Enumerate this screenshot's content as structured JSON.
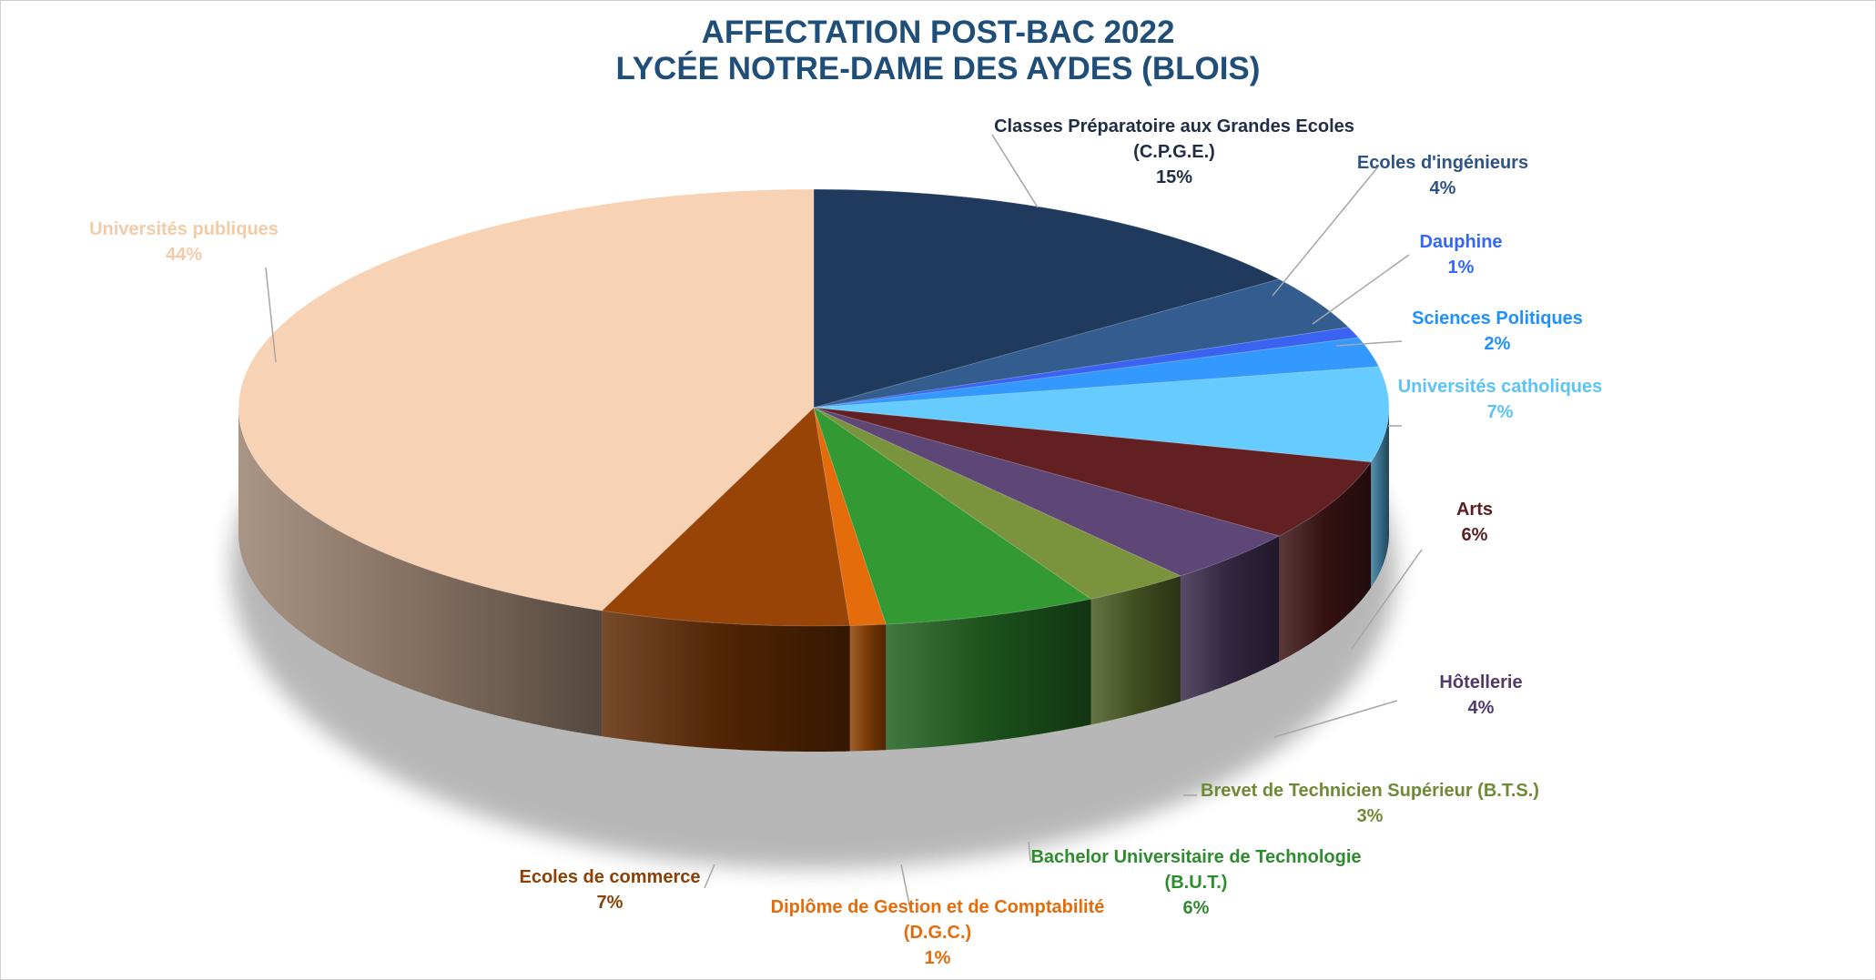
{
  "chart_data": {
    "type": "pie",
    "title_lines": [
      "AFFECTATION POST-BAC 2022",
      "LYCÉE NOTRE-DAME DES AYDES (BLOIS)"
    ],
    "slices": [
      {
        "label_lines": [
          "Classes Préparatoire aux Grandes Ecoles",
          "(C.P.G.E.)"
        ],
        "value": 15,
        "value_label": "15%",
        "color": "#203a5e",
        "label_color": "#1f2d45"
      },
      {
        "label_lines": [
          "Ecoles d'ingénieurs"
        ],
        "value": 4,
        "value_label": "4%",
        "color": "#335c8f",
        "label_color": "#2e5386"
      },
      {
        "label_lines": [
          "Dauphine"
        ],
        "value": 0.8,
        "value_label": "1%",
        "color": "#3a63f2",
        "label_color": "#3366ff"
      },
      {
        "label_lines": [
          "Sciences Politiques"
        ],
        "value": 2.2,
        "value_label": "2%",
        "color": "#3399ff",
        "label_color": "#1e90ff"
      },
      {
        "label_lines": [
          "Universités catholiques"
        ],
        "value": 7,
        "value_label": "7%",
        "color": "#66ccff",
        "label_color": "#5bc4f5"
      },
      {
        "label_lines": [
          "Arts"
        ],
        "value": 6,
        "value_label": "6%",
        "color": "#632023",
        "label_color": "#5a1f22"
      },
      {
        "label_lines": [
          "Hôtellerie"
        ],
        "value": 4,
        "value_label": "4%",
        "color": "#5e4677",
        "label_color": "#4f3a6b"
      },
      {
        "label_lines": [
          "Brevet de Technicien Supérieur (B.T.S.)"
        ],
        "value": 3,
        "value_label": "3%",
        "color": "#7a933c",
        "label_color": "#6f8a35"
      },
      {
        "label_lines": [
          "Bachelor Universitaire de Technologie",
          "(B.U.T.)"
        ],
        "value": 6,
        "value_label": "6%",
        "color": "#339933",
        "label_color": "#2e8b2e"
      },
      {
        "label_lines": [
          "Diplôme de Gestion et de Comptabilité",
          "(D.G.C.)"
        ],
        "value": 1,
        "value_label": "1%",
        "color": "#e46c0a",
        "label_color": "#e46c0a"
      },
      {
        "label_lines": [
          "Ecoles de commerce"
        ],
        "value": 7,
        "value_label": "7%",
        "color": "#974406",
        "label_color": "#8b4006"
      },
      {
        "label_lines": [
          "Universités publiques"
        ],
        "value": 44,
        "value_label": "44%",
        "color": "#f8d2b4",
        "label_color": "#f5cba7"
      }
    ],
    "legend": "none"
  }
}
